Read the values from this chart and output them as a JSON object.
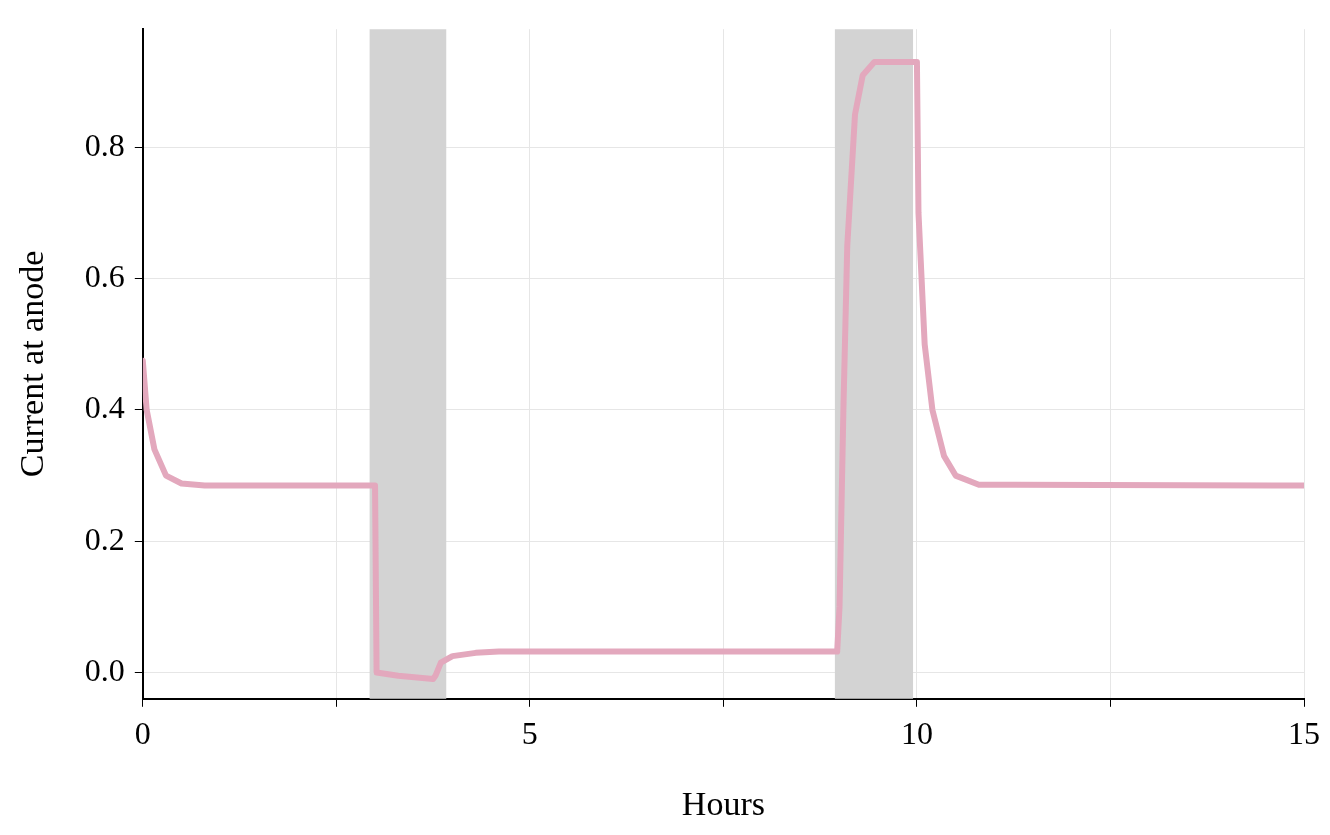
{
  "chart_data": {
    "type": "line",
    "xlabel": "Hours",
    "ylabel": "Current at anode",
    "xlim": [
      0,
      15
    ],
    "xticks": [
      0,
      {
        "value": 2.5,
        "label": null
      },
      5,
      {
        "value": 7.5,
        "label": null
      },
      10,
      {
        "value": 12.5,
        "label": null
      },
      15
    ],
    "ylim": [
      -0.04,
      0.98
    ],
    "yticks": [
      {
        "value": 0,
        "label": "0.0"
      },
      {
        "value": 0.2,
        "label": "0.2"
      },
      {
        "value": 0.4,
        "label": "0.4"
      },
      {
        "value": 0.6,
        "label": "0.6"
      },
      {
        "value": 0.8,
        "label": "0.8"
      }
    ],
    "grid": true,
    "legend": false,
    "marker": "none",
    "line_style": "solid",
    "bands": [
      {
        "axis": "x",
        "from": 2.93,
        "to": 3.92,
        "color": "#d3d3d3"
      },
      {
        "axis": "x",
        "from": 8.94,
        "to": 9.95,
        "color": "#d3d3d3"
      }
    ],
    "series": [
      {
        "color": "#e3a8bd",
        "x": [
          0,
          0.05,
          0.15,
          0.3,
          0.5,
          0.8,
          3.0,
          3.02,
          3.3,
          3.75,
          3.78,
          3.85,
          4.0,
          4.3,
          4.6,
          8.97,
          9.0,
          9.05,
          9.1,
          9.2,
          9.3,
          9.45,
          10.0,
          10.02,
          10.1,
          10.2,
          10.35,
          10.5,
          10.8,
          15
        ],
        "values": [
          0.475,
          0.4,
          0.34,
          0.3,
          0.288,
          0.285,
          0.285,
          0.0,
          -0.005,
          -0.01,
          -0.005,
          0.015,
          0.025,
          0.03,
          0.032,
          0.032,
          0.1,
          0.4,
          0.65,
          0.85,
          0.91,
          0.93,
          0.93,
          0.7,
          0.5,
          0.4,
          0.33,
          0.3,
          0.286,
          0.285
        ]
      }
    ]
  }
}
